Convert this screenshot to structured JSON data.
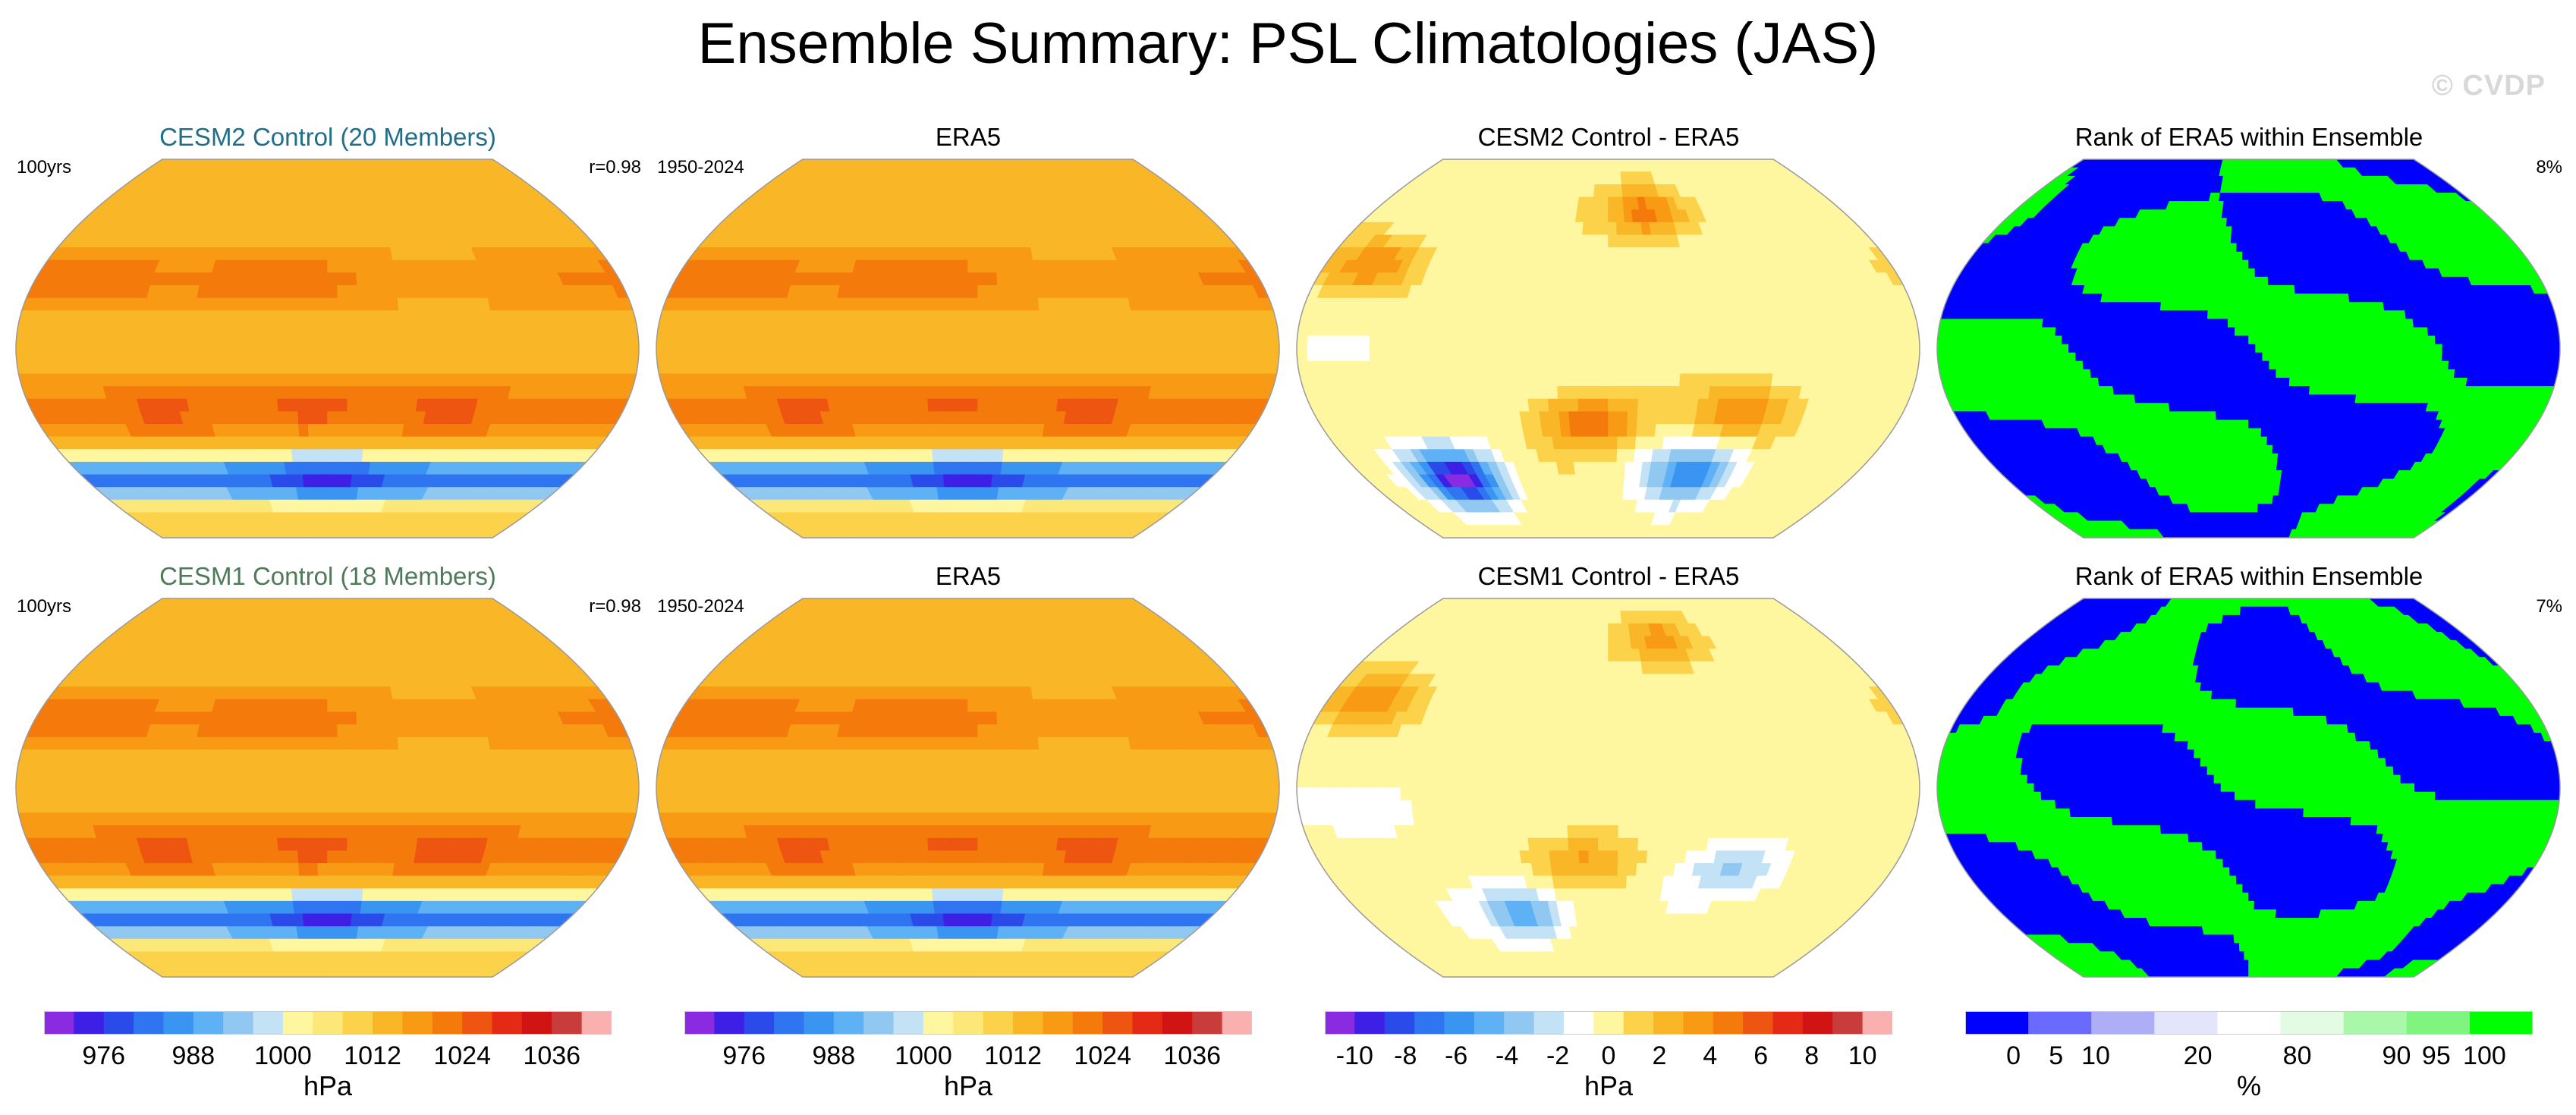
{
  "figure": {
    "title": "Ensemble Summary: PSL Climatologies (JAS)",
    "watermark": "© CVDP"
  },
  "colors": {
    "psl_palette": [
      "#8a2be2",
      "#3d1fe6",
      "#2a4bea",
      "#2f74f0",
      "#3a95f2",
      "#5fb1f5",
      "#91c8f2",
      "#c4e2f6",
      "#fff7a0",
      "#fce878",
      "#fbd24a",
      "#f9b728",
      "#f89a14",
      "#f47a0c",
      "#ee5510",
      "#e42a14",
      "#d01414",
      "#c93c3c",
      "#fbb0b0"
    ],
    "diff_palette": [
      "#8a2be2",
      "#3d1fe6",
      "#2a4bea",
      "#2f74f0",
      "#3a95f2",
      "#5fb1f5",
      "#91c8f2",
      "#c4e2f6",
      "#ffffff",
      "#fff7a0",
      "#fbd24a",
      "#f9b728",
      "#f89a14",
      "#f47a0c",
      "#ee5510",
      "#e42a14",
      "#d01414",
      "#c93c3c",
      "#fbb0b0"
    ],
    "rank_palette": [
      "#0000ff",
      "#6a6aff",
      "#aeaef6",
      "#e4e4fb",
      "#ffffff",
      "#e2fbe2",
      "#a9f7a9",
      "#7ff57f",
      "#00ff00"
    ]
  },
  "chart_data": [
    {
      "type": "heatmap",
      "projection": "robinson",
      "row": 1,
      "col": 1,
      "title": "CESM2 Control (20 Members)",
      "title_color": "#1f6f8b",
      "left_label": "100yrs",
      "right_label": "r=0.98",
      "field": "psl",
      "unit": "hPa",
      "levels_min": 968,
      "levels_max": 1044,
      "interval": 4,
      "features": [
        {
          "name": "north-pacific-high",
          "lon": -150,
          "lat": 38,
          "value": 1026
        },
        {
          "name": "azores-high",
          "lon": -35,
          "lat": 35,
          "value": 1026
        },
        {
          "name": "south-pacific-high",
          "lon": -100,
          "lat": -30,
          "value": 1023
        },
        {
          "name": "south-atlantic-high",
          "lon": -10,
          "lat": -28,
          "value": 1024
        },
        {
          "name": "indian-ocean-high",
          "lon": 75,
          "lat": -30,
          "value": 1024
        },
        {
          "name": "asian-low",
          "lon": 70,
          "lat": 30,
          "value": 998
        },
        {
          "name": "southern-ocean-trough",
          "lon": 0,
          "lat": -62,
          "value": 978
        }
      ]
    },
    {
      "type": "heatmap",
      "projection": "robinson",
      "row": 1,
      "col": 2,
      "title": "ERA5",
      "title_color": "#000000",
      "left_label": "1950-2024",
      "right_label": "",
      "field": "psl",
      "unit": "hPa",
      "levels_min": 968,
      "levels_max": 1044,
      "interval": 4,
      "features": [
        {
          "name": "north-pacific-high",
          "lon": -150,
          "lat": 38,
          "value": 1026
        },
        {
          "name": "azores-high",
          "lon": -35,
          "lat": 35,
          "value": 1025
        },
        {
          "name": "south-pacific-high",
          "lon": -100,
          "lat": -30,
          "value": 1023
        },
        {
          "name": "south-atlantic-high",
          "lon": -10,
          "lat": -28,
          "value": 1023
        },
        {
          "name": "indian-ocean-high",
          "lon": 75,
          "lat": -30,
          "value": 1024
        },
        {
          "name": "asian-low",
          "lon": 70,
          "lat": 30,
          "value": 998
        },
        {
          "name": "southern-ocean-trough",
          "lon": 0,
          "lat": -62,
          "value": 980
        }
      ]
    },
    {
      "type": "heatmap",
      "projection": "robinson",
      "row": 1,
      "col": 3,
      "title": "CESM2 Control - ERA5",
      "title_color": "#000000",
      "left_label": "",
      "right_label": "",
      "field": "psl_difference",
      "unit": "hPa",
      "levels_min": -11,
      "levels_max": 11,
      "interval": 1,
      "features": [
        {
          "name": "north-pacific-anomaly",
          "lon": -150,
          "lat": 40,
          "value": 4
        },
        {
          "name": "arctic-anomaly",
          "lon": 30,
          "lat": 65,
          "value": 5
        },
        {
          "name": "south-atlantic-anomaly",
          "lon": -10,
          "lat": -35,
          "value": 5
        },
        {
          "name": "indian-ocean-anomaly",
          "lon": 80,
          "lat": -30,
          "value": 4
        },
        {
          "name": "tropical-pacific-anomaly",
          "lon": -140,
          "lat": 0,
          "value": -1
        },
        {
          "name": "amundsen-sea-anomaly",
          "lon": -110,
          "lat": -62,
          "value": -10
        },
        {
          "name": "southern-ocean-anomaly",
          "lon": 60,
          "lat": -60,
          "value": -6
        }
      ]
    },
    {
      "type": "heatmap",
      "projection": "robinson",
      "row": 1,
      "col": 4,
      "title": "Rank of ERA5 within Ensemble",
      "title_color": "#000000",
      "left_label": "",
      "right_label": "8%",
      "field": "rank",
      "unit": "%",
      "features": [
        {
          "name": "low-rank-regions",
          "value": 0
        },
        {
          "name": "high-rank-regions",
          "value": 100
        }
      ]
    },
    {
      "type": "heatmap",
      "projection": "robinson",
      "row": 2,
      "col": 1,
      "title": "CESM1 Control (18 Members)",
      "title_color": "#4f7a5a",
      "left_label": "100yrs",
      "right_label": "r=0.98",
      "field": "psl",
      "unit": "hPa",
      "levels_min": 968,
      "levels_max": 1044,
      "interval": 4,
      "features": [
        {
          "name": "north-pacific-high",
          "lon": -150,
          "lat": 38,
          "value": 1027
        },
        {
          "name": "azores-high",
          "lon": -35,
          "lat": 35,
          "value": 1026
        },
        {
          "name": "south-pacific-high",
          "lon": -100,
          "lat": -30,
          "value": 1024
        },
        {
          "name": "south-atlantic-high",
          "lon": -10,
          "lat": -28,
          "value": 1024
        },
        {
          "name": "indian-ocean-high",
          "lon": 75,
          "lat": -30,
          "value": 1025
        },
        {
          "name": "asian-low",
          "lon": 70,
          "lat": 30,
          "value": 998
        },
        {
          "name": "southern-ocean-trough",
          "lon": 0,
          "lat": -62,
          "value": 980
        }
      ]
    },
    {
      "type": "heatmap",
      "projection": "robinson",
      "row": 2,
      "col": 2,
      "title": "ERA5",
      "title_color": "#000000",
      "left_label": "1950-2024",
      "right_label": "",
      "field": "psl",
      "unit": "hPa",
      "levels_min": 968,
      "levels_max": 1044,
      "interval": 4,
      "features": [
        {
          "name": "north-pacific-high",
          "lon": -150,
          "lat": 38,
          "value": 1026
        },
        {
          "name": "azores-high",
          "lon": -35,
          "lat": 35,
          "value": 1025
        },
        {
          "name": "south-pacific-high",
          "lon": -100,
          "lat": -30,
          "value": 1023
        },
        {
          "name": "south-atlantic-high",
          "lon": -10,
          "lat": -28,
          "value": 1023
        },
        {
          "name": "indian-ocean-high",
          "lon": 75,
          "lat": -30,
          "value": 1024
        },
        {
          "name": "asian-low",
          "lon": 70,
          "lat": 30,
          "value": 998
        },
        {
          "name": "southern-ocean-trough",
          "lon": 0,
          "lat": -62,
          "value": 980
        }
      ]
    },
    {
      "type": "heatmap",
      "projection": "robinson",
      "row": 2,
      "col": 3,
      "title": "CESM1 Control - ERA5",
      "title_color": "#000000",
      "left_label": "",
      "right_label": "",
      "field": "psl_difference",
      "unit": "hPa",
      "levels_min": -11,
      "levels_max": 11,
      "interval": 1,
      "features": [
        {
          "name": "north-pacific-anomaly",
          "lon": -150,
          "lat": 42,
          "value": 4
        },
        {
          "name": "arctic-anomaly",
          "lon": 40,
          "lat": 70,
          "value": 4
        },
        {
          "name": "tropical-pacific-anomaly",
          "lon": -140,
          "lat": -10,
          "value": -2
        },
        {
          "name": "south-atlantic-anomaly",
          "lon": -15,
          "lat": -35,
          "value": 3
        },
        {
          "name": "indian-ocean-anomaly",
          "lon": 80,
          "lat": -40,
          "value": -3
        },
        {
          "name": "southern-ocean-anomaly",
          "lon": -60,
          "lat": -60,
          "value": -5
        }
      ]
    },
    {
      "type": "heatmap",
      "projection": "robinson",
      "row": 2,
      "col": 4,
      "title": "Rank of ERA5 within Ensemble",
      "title_color": "#000000",
      "left_label": "",
      "right_label": "7%",
      "field": "rank",
      "unit": "%",
      "features": [
        {
          "name": "low-rank-regions",
          "value": 0
        },
        {
          "name": "high-rank-regions",
          "value": 100
        }
      ]
    }
  ],
  "colorbars": [
    {
      "name": "psl-colorbar-1",
      "unit": "hPa",
      "palette": "psl_palette",
      "ticks": [
        "976",
        "988",
        "1000",
        "1012",
        "1024",
        "1036"
      ]
    },
    {
      "name": "psl-colorbar-2",
      "unit": "hPa",
      "palette": "psl_palette",
      "ticks": [
        "976",
        "988",
        "1000",
        "1012",
        "1024",
        "1036"
      ]
    },
    {
      "name": "diff-colorbar",
      "unit": "hPa",
      "palette": "diff_palette",
      "ticks": [
        "-10",
        "-8",
        "-6",
        "-4",
        "-2",
        "0",
        "2",
        "4",
        "6",
        "8",
        "10"
      ]
    },
    {
      "name": "rank-colorbar",
      "unit": "%",
      "palette": "rank_palette",
      "ticks": [
        "0",
        "5",
        "10",
        "20",
        "80",
        "90",
        "95",
        "100"
      ]
    }
  ]
}
